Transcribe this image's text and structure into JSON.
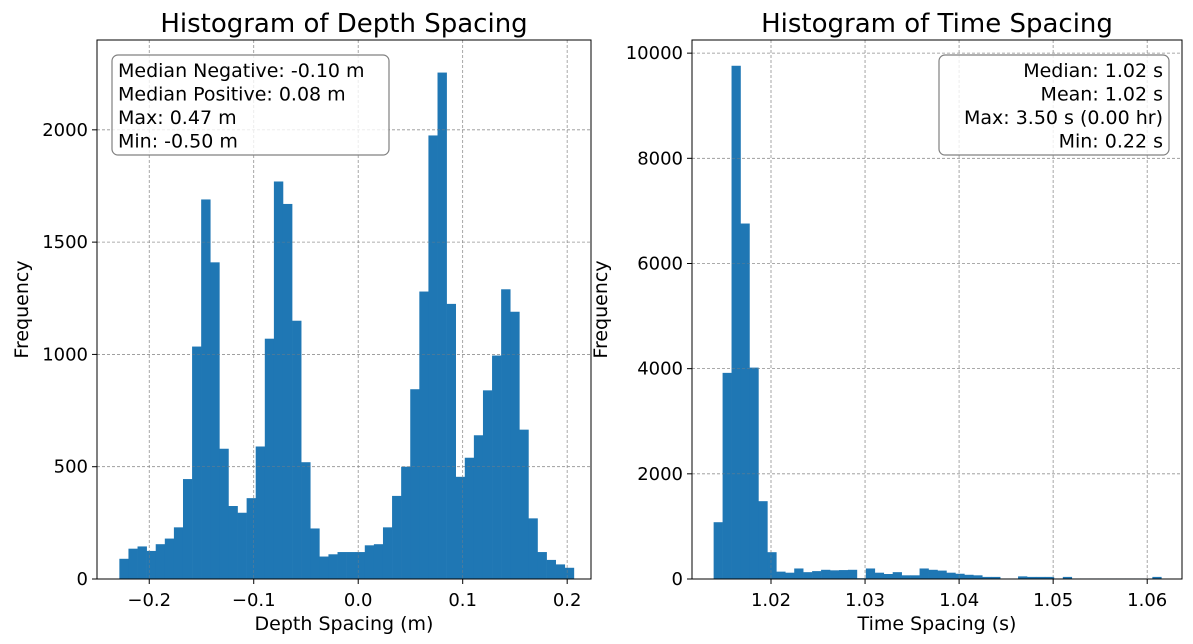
{
  "chart_data": [
    {
      "type": "histogram",
      "title": "Histogram of Depth Spacing",
      "xlabel": "Depth Spacing (m)",
      "ylabel": "Frequency",
      "xlim": [
        -0.25,
        0.2228
      ],
      "ylim": [
        0,
        2400
      ],
      "xticks": [
        -0.2,
        -0.1,
        0.0,
        0.1,
        0.2
      ],
      "xtick_labels": [
        "−0.2",
        "−0.1",
        "0.0",
        "0.1",
        "0.2"
      ],
      "yticks": [
        0,
        500,
        1000,
        1500,
        2000
      ],
      "ytick_labels": [
        "0",
        "500",
        "1000",
        "1500",
        "2000"
      ],
      "grid": true,
      "color": "#1f77b4",
      "bin_start": -0.2286,
      "bin_width": 0.0087,
      "values": [
        90,
        135,
        145,
        125,
        155,
        180,
        230,
        445,
        1035,
        1690,
        1410,
        580,
        325,
        295,
        360,
        590,
        1070,
        1770,
        1670,
        1150,
        520,
        225,
        100,
        110,
        120,
        120,
        120,
        150,
        155,
        230,
        370,
        500,
        845,
        1280,
        1975,
        2255,
        1225,
        455,
        540,
        640,
        840,
        995,
        1290,
        1190,
        665,
        270,
        120,
        85,
        65,
        50
      ],
      "annotation": {
        "lines": [
          "Median Negative: -0.10 m",
          "Median Positive: 0.08 m",
          "Max: 0.47 m",
          "Min: -0.50 m"
        ],
        "align": "left",
        "position": "top-left"
      }
    },
    {
      "type": "histogram",
      "title": "Histogram of Time Spacing",
      "xlabel": "Time Spacing (s)",
      "ylabel": "Frequency",
      "xlim": [
        1.0116,
        1.0637
      ],
      "ylim": [
        0,
        10250
      ],
      "xticks": [
        1.02,
        1.03,
        1.04,
        1.05,
        1.06
      ],
      "xtick_labels": [
        "1.02",
        "1.03",
        "1.04",
        "1.05",
        "1.06"
      ],
      "yticks": [
        0,
        2000,
        4000,
        6000,
        8000,
        10000
      ],
      "ytick_labels": [
        "0",
        "2000",
        "4000",
        "6000",
        "8000",
        "10000"
      ],
      "grid": true,
      "color": "#1f77b4",
      "bin_start": 1.0139,
      "bin_width": 0.000952,
      "values": [
        1080,
        3920,
        9760,
        6760,
        4020,
        1480,
        510,
        140,
        120,
        200,
        130,
        150,
        175,
        165,
        170,
        175,
        15,
        200,
        120,
        95,
        130,
        70,
        70,
        200,
        175,
        160,
        120,
        100,
        80,
        70,
        40,
        40,
        10,
        10,
        50,
        40,
        40,
        40,
        10,
        40,
        10,
        10,
        10,
        10,
        10,
        10,
        10,
        10,
        10,
        40
      ],
      "annotation": {
        "lines": [
          "Median: 1.02 s",
          "Mean: 1.02 s",
          "Max: 3.50 s (0.00 hr)",
          "Min: 0.22 s"
        ],
        "align": "right",
        "position": "top-right"
      }
    }
  ]
}
